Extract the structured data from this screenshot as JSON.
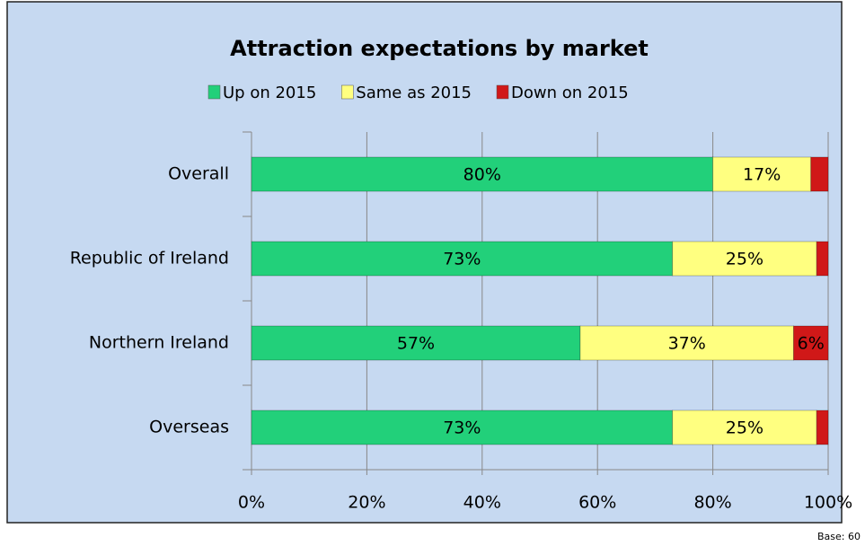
{
  "chart_data": {
    "type": "stacked-bar-horizontal",
    "title": "Attraction expectations by market",
    "categories": [
      "Overall",
      "Republic of Ireland",
      "Northern Ireland",
      "Overseas"
    ],
    "series": [
      {
        "name": "Up on 2015",
        "color": "#22d07a",
        "values": [
          80,
          73,
          57,
          73
        ],
        "value_labels": [
          "80%",
          "73%",
          "57%",
          "73%"
        ]
      },
      {
        "name": "Same as 2015",
        "color": "#ffff80",
        "values": [
          17,
          25,
          37,
          25
        ],
        "value_labels": [
          "17%",
          "25%",
          "37%",
          "25%"
        ]
      },
      {
        "name": "Down on 2015",
        "color": "#d01818",
        "values": [
          3,
          2,
          6,
          2
        ],
        "value_labels": [
          null,
          null,
          "6%",
          null
        ]
      }
    ],
    "xlim": [
      0,
      100
    ],
    "xticks": [
      {
        "value": 0,
        "label": "0%"
      },
      {
        "value": 20,
        "label": "20%"
      },
      {
        "value": 40,
        "label": "40%"
      },
      {
        "value": 60,
        "label": "60%"
      },
      {
        "value": 80,
        "label": "80%"
      },
      {
        "value": 100,
        "label": "100%"
      }
    ],
    "grid": true,
    "legend": "top",
    "footnote": "Base: 60"
  }
}
